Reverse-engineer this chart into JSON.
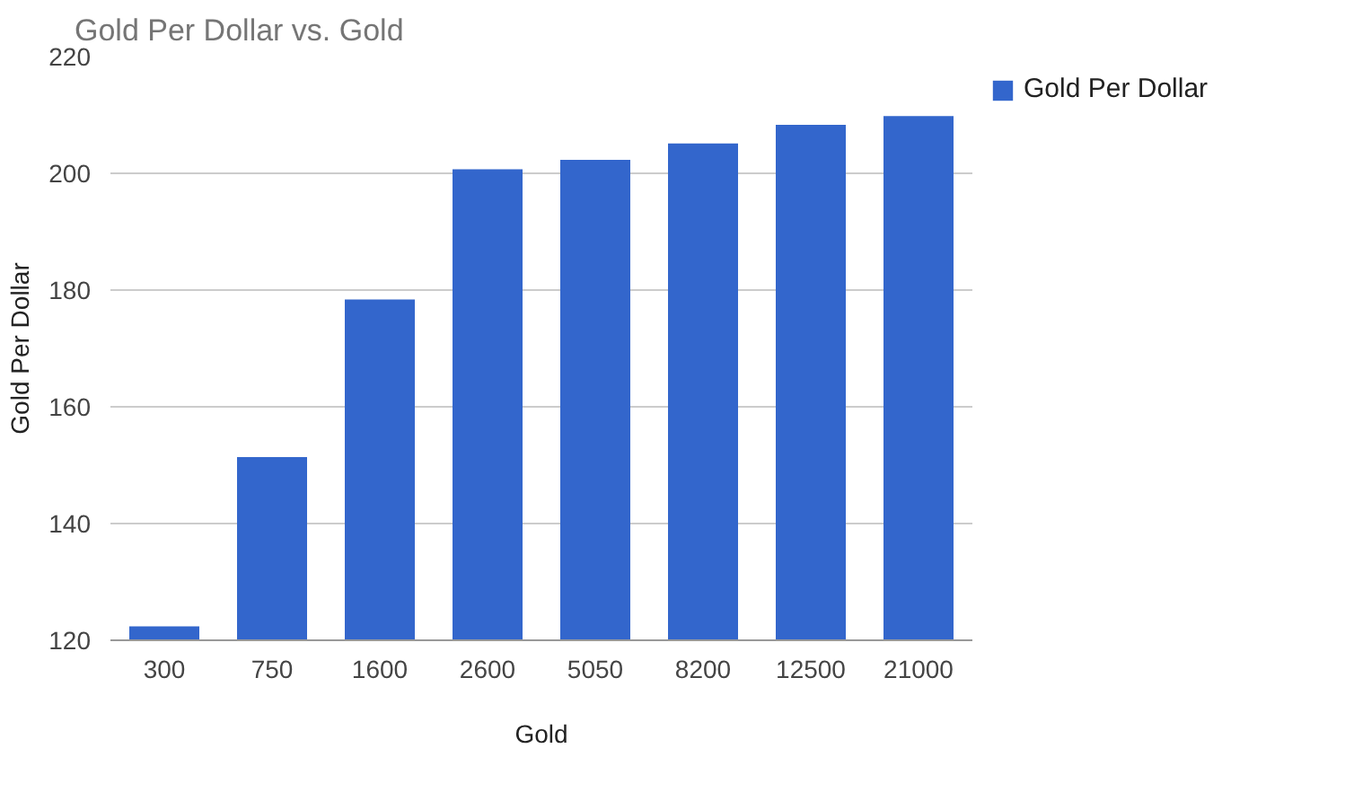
{
  "chart_data": {
    "type": "bar",
    "title": "Gold Per Dollar vs. Gold",
    "xlabel": "Gold",
    "ylabel": "Gold Per Dollar",
    "categories": [
      "300",
      "750",
      "1600",
      "2600",
      "5050",
      "8200",
      "12500",
      "21000"
    ],
    "series": [
      {
        "name": "Gold Per Dollar",
        "color": "#3366cc",
        "values": [
          122.4,
          151.4,
          178.4,
          200.7,
          202.3,
          205.1,
          208.3,
          209.8
        ]
      }
    ],
    "ylim": [
      120,
      220
    ],
    "yticks": [
      120,
      140,
      160,
      180,
      200,
      220
    ],
    "grid": "y",
    "legend": "right"
  }
}
